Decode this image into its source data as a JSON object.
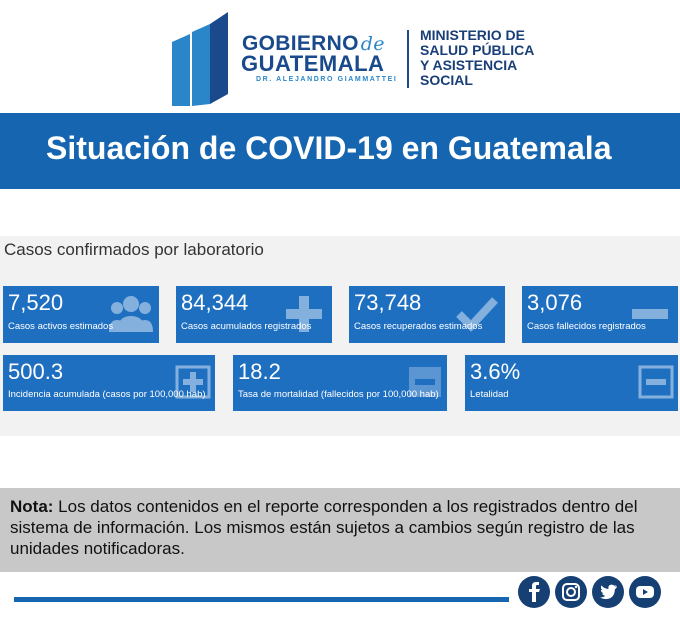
{
  "header": {
    "gobierno": "GOBIERNO",
    "de": "de",
    "guatemala": "GUATEMALA",
    "president": "DR. ALEJANDRO GIAMMATTEI",
    "ministry_lines": [
      "MINISTERIO DE",
      "SALUD PÚBLICA",
      "Y ASISTENCIA",
      "SOCIAL"
    ],
    "colors": {
      "dark_blue": "#1a4a8c",
      "light_blue": "#2a86c8"
    }
  },
  "title": "Situación de COVID-19 en Guatemala",
  "panel": {
    "title": "Casos confirmados por laboratorio",
    "cards": [
      {
        "value": "7,520",
        "label": "Casos activos estimados",
        "icon": "people-icon"
      },
      {
        "value": "84,344",
        "label": "Casos acumulados registrados",
        "icon": "plus-icon"
      },
      {
        "value": "73,748",
        "label": "Casos recuperados estimados",
        "icon": "check-icon"
      },
      {
        "value": "3,076",
        "label": "Casos fallecidos registrados",
        "icon": "minus-icon"
      },
      {
        "value": "500.3",
        "label": "Incidencia acumulada (casos por 100,000 hab)",
        "icon": "plus-square-icon"
      },
      {
        "value": "18.2",
        "label": "Tasa de mortalidad (fallecidos por 100,000 hab)",
        "icon": "minus-square-icon"
      },
      {
        "value": "3.6%",
        "label": "Letalidad",
        "icon": "minus-square-outline-icon"
      }
    ],
    "card_color": "#1f6fc1"
  },
  "note": {
    "bold": "Nota:",
    "text": " Los datos contenidos en el reporte corresponden a los registrados dentro del sistema de información. Los mismos están sujetos a cambios según registro de las unidades notificadoras."
  },
  "social": [
    "facebook-icon",
    "instagram-icon",
    "twitter-icon",
    "youtube-icon"
  ],
  "accent_color": "#1565b0"
}
